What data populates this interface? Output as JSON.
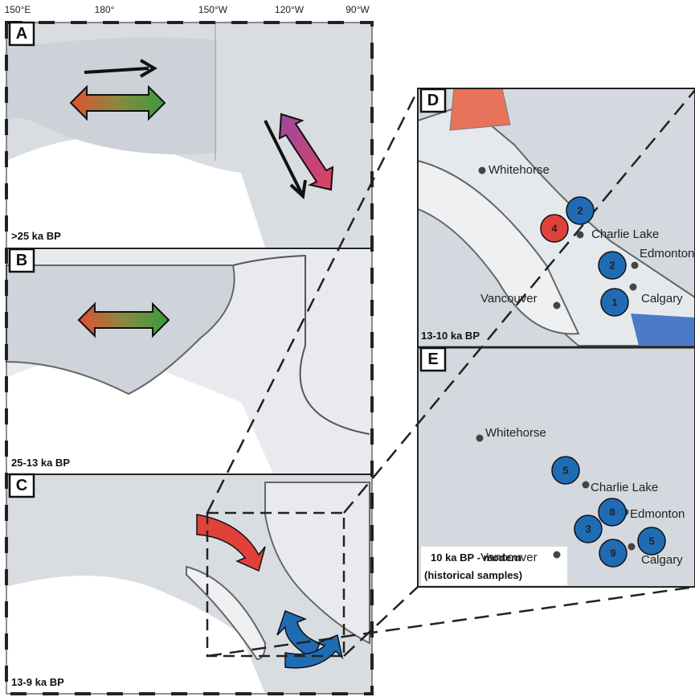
{
  "axis": {
    "labels": [
      "150°E",
      "180°",
      "150°W",
      "120°W",
      "90°W"
    ]
  },
  "panels": [
    {
      "letter": "A",
      "caption": ">25 ka BP"
    },
    {
      "letter": "B",
      "caption": "25-13 ka BP"
    },
    {
      "letter": "C",
      "caption": "13-9 ka BP"
    },
    {
      "letter": "D",
      "caption": "13-10 ka BP",
      "cities": [
        "Whitehorse",
        "Charlie Lake",
        "Edmonton",
        "Vancouver",
        "Calgary"
      ],
      "samples": [
        {
          "label": "2",
          "color": "#1f6cb5"
        },
        {
          "label": "4",
          "color": "#e0413a"
        },
        {
          "label": "2",
          "color": "#1f6cb5"
        },
        {
          "label": "1",
          "color": "#1f6cb5"
        }
      ]
    },
    {
      "letter": "E",
      "caption": "10 ka BP - modern",
      "caption2": "(historical samples)",
      "cities": [
        "Whitehorse",
        "Charlie Lake",
        "Edmonton",
        "Vancouver",
        "Calgary"
      ],
      "samples": [
        {
          "label": "5",
          "color": "#1f6cb5"
        },
        {
          "label": "8",
          "color": "#1f6cb5"
        },
        {
          "label": "3",
          "color": "#1f6cb5"
        },
        {
          "label": "9",
          "color": "#1f6cb5"
        },
        {
          "label": "5",
          "color": "#1f6cb5"
        }
      ]
    }
  ]
}
